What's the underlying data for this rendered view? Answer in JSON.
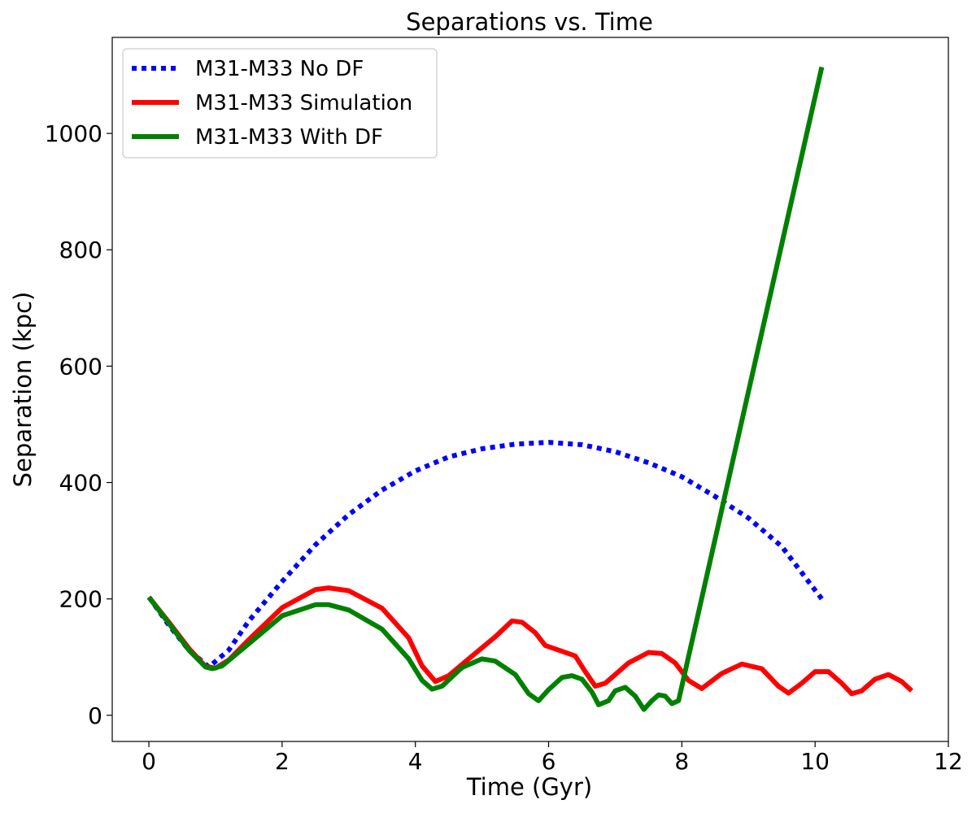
{
  "chart_data": {
    "type": "line",
    "title": "Separations vs. Time",
    "xlabel": "Time (Gyr)",
    "ylabel": "Separation (kpc)",
    "xlim": [
      -0.55,
      12.0
    ],
    "ylim": [
      -45,
      1165
    ],
    "xticks": [
      0,
      2,
      4,
      6,
      8,
      10,
      12
    ],
    "yticks": [
      0,
      200,
      400,
      600,
      800,
      1000
    ],
    "grid": false,
    "legend_position": "upper-left",
    "series": [
      {
        "name": "M31-M33 No DF",
        "color": "#0000ff",
        "style": "dotted",
        "points": [
          [
            0.0,
            203
          ],
          [
            0.3,
            155
          ],
          [
            0.6,
            112
          ],
          [
            0.9,
            83
          ],
          [
            1.2,
            112
          ],
          [
            1.5,
            162
          ],
          [
            2.0,
            230
          ],
          [
            2.5,
            293
          ],
          [
            3.0,
            345
          ],
          [
            3.5,
            387
          ],
          [
            4.0,
            420
          ],
          [
            4.5,
            444
          ],
          [
            5.0,
            458
          ],
          [
            5.5,
            466
          ],
          [
            6.0,
            469
          ],
          [
            6.5,
            465
          ],
          [
            7.0,
            453
          ],
          [
            7.5,
            434
          ],
          [
            8.0,
            410
          ],
          [
            8.5,
            376
          ],
          [
            9.0,
            339
          ],
          [
            9.5,
            290
          ],
          [
            10.1,
            200
          ]
        ]
      },
      {
        "name": "M31-M33 Simulation",
        "color": "#ff0000",
        "style": "solid",
        "points": [
          [
            0.0,
            203
          ],
          [
            0.3,
            160
          ],
          [
            0.6,
            115
          ],
          [
            0.85,
            84
          ],
          [
            1.0,
            81
          ],
          [
            1.2,
            95
          ],
          [
            1.5,
            130
          ],
          [
            2.0,
            185
          ],
          [
            2.5,
            216
          ],
          [
            2.7,
            219
          ],
          [
            3.0,
            214
          ],
          [
            3.5,
            184
          ],
          [
            3.9,
            133
          ],
          [
            4.1,
            85
          ],
          [
            4.3,
            58
          ],
          [
            4.5,
            68
          ],
          [
            4.8,
            97
          ],
          [
            5.2,
            135
          ],
          [
            5.45,
            162
          ],
          [
            5.6,
            160
          ],
          [
            5.8,
            142
          ],
          [
            5.95,
            120
          ],
          [
            6.2,
            110
          ],
          [
            6.4,
            102
          ],
          [
            6.55,
            75
          ],
          [
            6.7,
            50
          ],
          [
            6.85,
            55
          ],
          [
            7.2,
            90
          ],
          [
            7.5,
            108
          ],
          [
            7.7,
            106
          ],
          [
            7.9,
            90
          ],
          [
            8.1,
            60
          ],
          [
            8.3,
            46
          ],
          [
            8.6,
            72
          ],
          [
            8.9,
            88
          ],
          [
            9.2,
            80
          ],
          [
            9.45,
            50
          ],
          [
            9.6,
            38
          ],
          [
            9.8,
            55
          ],
          [
            10.0,
            75
          ],
          [
            10.2,
            75
          ],
          [
            10.4,
            55
          ],
          [
            10.55,
            37
          ],
          [
            10.7,
            42
          ],
          [
            10.9,
            62
          ],
          [
            11.1,
            70
          ],
          [
            11.3,
            58
          ],
          [
            11.45,
            42
          ]
        ]
      },
      {
        "name": "M31-M33 With DF",
        "color": "#008000",
        "style": "solid",
        "points": [
          [
            0.0,
            203
          ],
          [
            0.3,
            158
          ],
          [
            0.6,
            112
          ],
          [
            0.85,
            83
          ],
          [
            0.95,
            80
          ],
          [
            1.1,
            85
          ],
          [
            1.5,
            123
          ],
          [
            2.0,
            171
          ],
          [
            2.5,
            190
          ],
          [
            2.7,
            190
          ],
          [
            3.0,
            181
          ],
          [
            3.5,
            148
          ],
          [
            3.9,
            97
          ],
          [
            4.1,
            60
          ],
          [
            4.25,
            45
          ],
          [
            4.4,
            50
          ],
          [
            4.7,
            82
          ],
          [
            5.0,
            97
          ],
          [
            5.2,
            93
          ],
          [
            5.5,
            70
          ],
          [
            5.7,
            37
          ],
          [
            5.85,
            25
          ],
          [
            6.0,
            44
          ],
          [
            6.2,
            65
          ],
          [
            6.35,
            68
          ],
          [
            6.5,
            62
          ],
          [
            6.65,
            40
          ],
          [
            6.75,
            18
          ],
          [
            6.9,
            25
          ],
          [
            7.0,
            42
          ],
          [
            7.15,
            48
          ],
          [
            7.3,
            33
          ],
          [
            7.43,
            10
          ],
          [
            7.55,
            25
          ],
          [
            7.65,
            35
          ],
          [
            7.75,
            33
          ],
          [
            7.85,
            20
          ],
          [
            7.95,
            25
          ],
          [
            10.1,
            1114
          ]
        ]
      }
    ]
  }
}
